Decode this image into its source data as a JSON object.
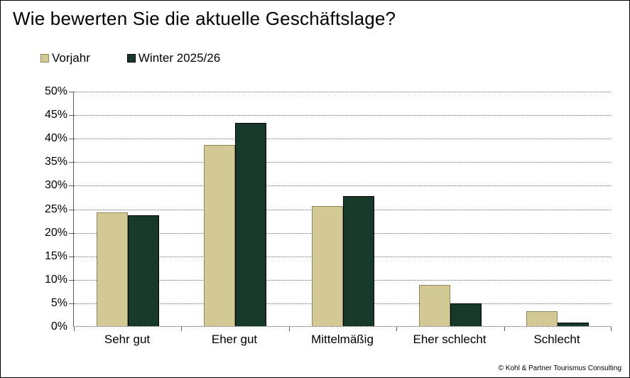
{
  "window": {
    "background_color": "#ffffff",
    "border_color": "#000000"
  },
  "chart_data": {
    "type": "bar",
    "title": "Wie bewerten Sie die aktuelle Geschäftslage?",
    "categories": [
      "Sehr gut",
      "Eher gut",
      "Mittelmäßig",
      "Eher schlecht",
      "Schlecht"
    ],
    "series": [
      {
        "name": "Vorjahr",
        "color": "#D2C994",
        "border_color": "#8F8757",
        "values": [
          24.2,
          38.5,
          25.5,
          8.7,
          3.1
        ]
      },
      {
        "name": "Winter 2025/26",
        "color": "#17392A",
        "border_color": "#000000",
        "values": [
          23.5,
          43.2,
          27.7,
          4.9,
          0.8
        ]
      }
    ],
    "xlabel": "",
    "ylabel": "",
    "ylim": [
      0,
      50
    ],
    "ytick_step": 5,
    "ytick_labels": [
      "0%",
      "5%",
      "10%",
      "15%",
      "20%",
      "25%",
      "30%",
      "35%",
      "40%",
      "45%",
      "50%"
    ],
    "grid": "horizontal-dotted",
    "legend_position": "top-left",
    "axis_color": "#595959"
  },
  "footer": {
    "copyright": "© Kohl & Partner Tourismus Consulting"
  }
}
